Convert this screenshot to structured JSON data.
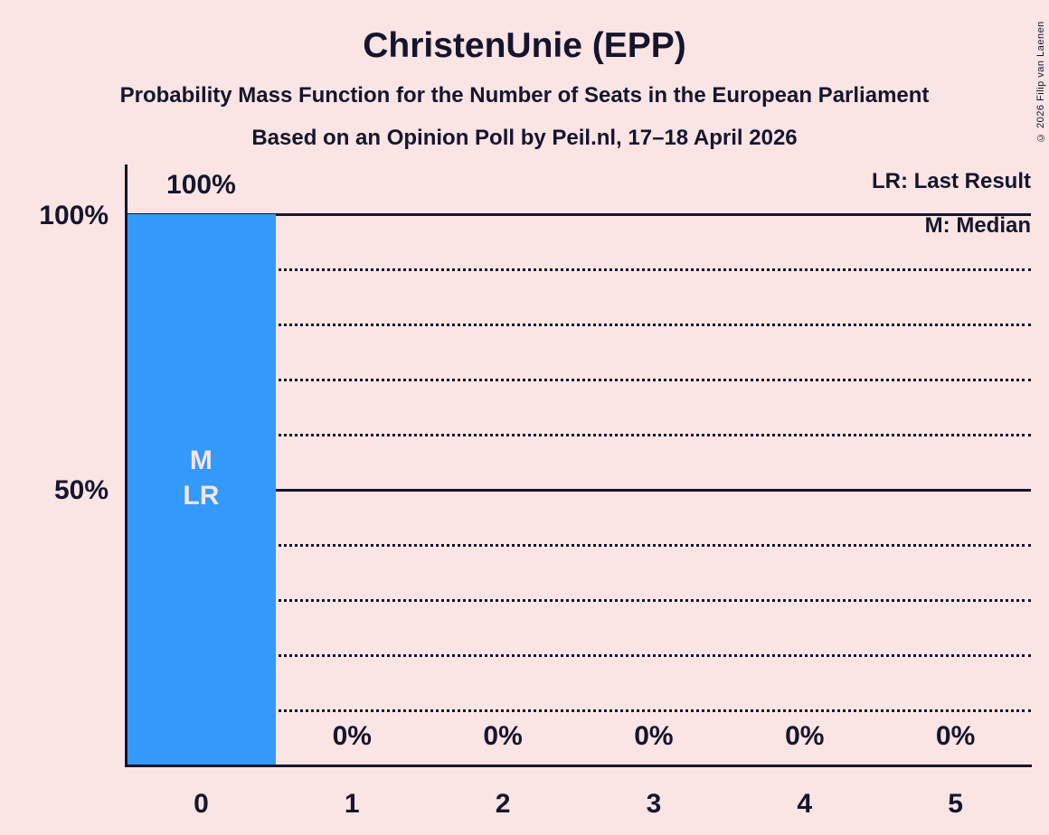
{
  "header": {
    "title": "ChristenUnie (EPP)",
    "subtitle": "Probability Mass Function for the Number of Seats in the European Parliament",
    "poll_line": "Based on an Opinion Poll by Peil.nl, 17–18 April 2026"
  },
  "legend": {
    "lr": "LR: Last Result",
    "m": "M: Median"
  },
  "copyright": "© 2026 Filip van Laenen",
  "chart_data": {
    "type": "bar",
    "title": "ChristenUnie (EPP)",
    "categories": [
      "0",
      "1",
      "2",
      "3",
      "4",
      "5"
    ],
    "values": [
      100,
      0,
      0,
      0,
      0,
      0
    ],
    "value_labels": [
      "100%",
      "0%",
      "0%",
      "0%",
      "0%",
      "0%"
    ],
    "y_axis": {
      "ticks": [
        "100%",
        "50%"
      ],
      "tick_values": [
        100,
        50
      ],
      "ylim": [
        0,
        100
      ]
    },
    "gridlines": {
      "solid": [
        100,
        50
      ],
      "dotted": [
        90,
        80,
        70,
        60,
        40,
        30,
        20,
        10
      ]
    },
    "annotations": [
      {
        "category": "0",
        "lines": [
          "M",
          "LR"
        ]
      }
    ],
    "legend_position": "top-right",
    "grid": true,
    "background_color": "#FAE4E4",
    "bar_color": "#3399FB",
    "text_color": "#15152D",
    "bar_label_color": "#FAE4E4"
  }
}
